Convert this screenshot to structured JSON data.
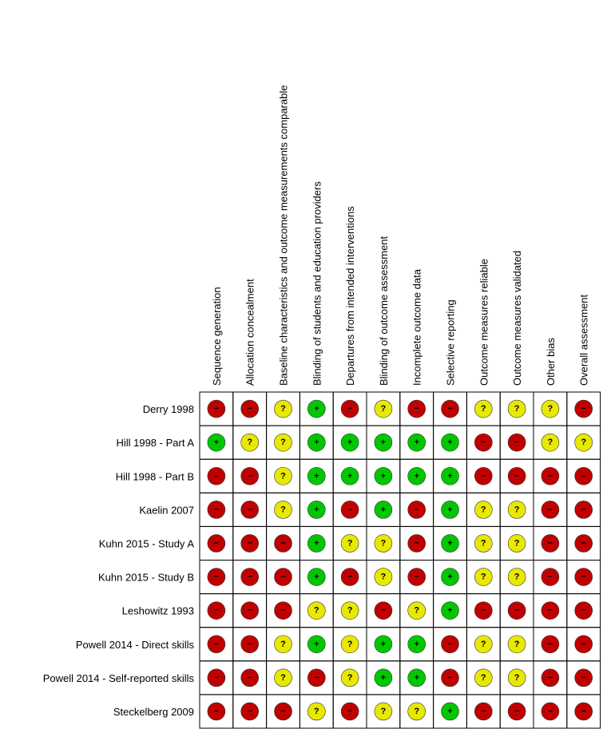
{
  "table": {
    "columns": [
      "Sequence generation",
      "Allocation concealment",
      "Baseline characteristics and outcome measurements comparable",
      "Blinding of students and education providers",
      "Departures from intended interventions",
      "Blinding of outcome assessment",
      "Incomplete outcome data",
      "Selective reporting",
      "Outcome measures reliable",
      "Outcome measures validated",
      "Other bias",
      "Overall assessment"
    ],
    "judgement_colors": {
      "+": "#00c800",
      "−": "#c00000",
      "?": "#e8e800"
    },
    "rows": [
      {
        "name": "Derry 1998",
        "cells": [
          "−",
          "−",
          "?",
          "+",
          "−",
          "?",
          "−",
          "−",
          "?",
          "?",
          "?",
          "−"
        ]
      },
      {
        "name": "Hill 1998 - Part A",
        "cells": [
          "+",
          "?",
          "?",
          "+",
          "+",
          "+",
          "+",
          "+",
          "−",
          "−",
          "?",
          "?"
        ]
      },
      {
        "name": "Hill 1998 - Part B",
        "cells": [
          "−",
          "−",
          "?",
          "+",
          "+",
          "+",
          "+",
          "+",
          "−",
          "−",
          "−",
          "−"
        ]
      },
      {
        "name": "Kaelin 2007",
        "cells": [
          "−",
          "−",
          "?",
          "+",
          "−",
          "+",
          "−",
          "+",
          "?",
          "?",
          "−",
          "−"
        ]
      },
      {
        "name": "Kuhn 2015 - Study A",
        "cells": [
          "−",
          "−",
          "−",
          "+",
          "?",
          "?",
          "−",
          "+",
          "?",
          "?",
          "−",
          "−"
        ]
      },
      {
        "name": "Kuhn 2015 - Study B",
        "cells": [
          "−",
          "−",
          "−",
          "+",
          "−",
          "?",
          "−",
          "+",
          "?",
          "?",
          "−",
          "−"
        ]
      },
      {
        "name": "Leshowitz 1993",
        "cells": [
          "−",
          "−",
          "−",
          "?",
          "?",
          "−",
          "?",
          "+",
          "−",
          "−",
          "−",
          "−"
        ]
      },
      {
        "name": "Powell 2014 - Direct skills",
        "cells": [
          "−",
          "−",
          "?",
          "+",
          "?",
          "+",
          "+",
          "−",
          "?",
          "?",
          "−",
          "−"
        ]
      },
      {
        "name": "Powell 2014 - Self-reported skills",
        "cells": [
          "−",
          "−",
          "?",
          "−",
          "?",
          "+",
          "+",
          "−",
          "?",
          "?",
          "−",
          "−"
        ]
      },
      {
        "name": "Steckelberg 2009",
        "cells": [
          "−",
          "−",
          "−",
          "?",
          "−",
          "?",
          "?",
          "+",
          "−",
          "−",
          "−",
          "−"
        ]
      }
    ]
  }
}
